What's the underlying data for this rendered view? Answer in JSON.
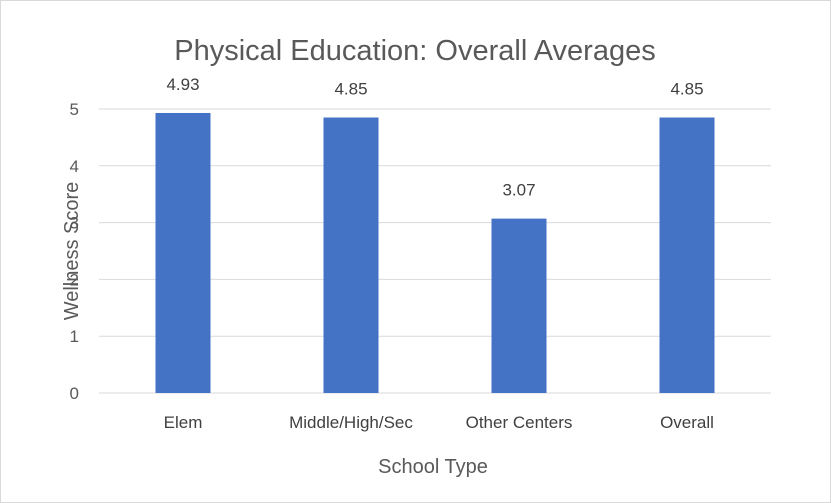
{
  "chart_data": {
    "type": "bar",
    "title": "Physical Education: Overall Averages",
    "xlabel": "School Type",
    "ylabel": "Wellness Score",
    "categories": [
      "Elem",
      "Middle/High/Sec",
      "Other Centers",
      "Overall"
    ],
    "values": [
      4.93,
      4.85,
      3.07,
      4.85
    ],
    "data_labels": [
      "4.93",
      "4.85",
      "3.07",
      "4.85"
    ],
    "yticks": [
      "0",
      "1",
      "2",
      "3",
      "4",
      "5"
    ],
    "ylim": [
      0,
      5
    ],
    "grid": true,
    "legend": "none",
    "bar_color": "#4472c4"
  }
}
